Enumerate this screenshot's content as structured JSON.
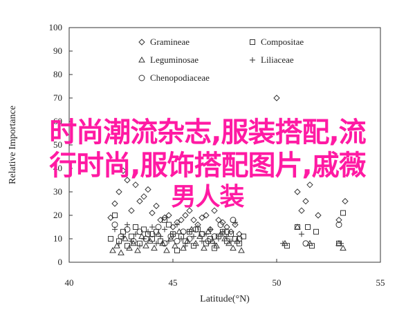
{
  "chart_data": {
    "type": "scatter",
    "xlabel": "Latitude(°N)",
    "ylabel": "Relative Importance",
    "xlim": [
      40,
      55
    ],
    "ylim": [
      0,
      100
    ],
    "xticks": [
      40,
      45,
      50,
      55
    ],
    "yticks": [
      0,
      10,
      20,
      30,
      40,
      50,
      60,
      70,
      80,
      90,
      100
    ],
    "legend": [
      {
        "name": "Gramineae",
        "marker": "diamond"
      },
      {
        "name": "Compositae",
        "marker": "square"
      },
      {
        "name": "Leguminosae",
        "marker": "triangle"
      },
      {
        "name": "Liliaceae",
        "marker": "plus"
      },
      {
        "name": "Chenopodiaceae",
        "marker": "circle"
      }
    ],
    "series": [
      {
        "name": "Gramineae",
        "marker": "diamond",
        "points": [
          [
            42.0,
            19
          ],
          [
            42.2,
            25
          ],
          [
            42.4,
            30
          ],
          [
            42.6,
            39
          ],
          [
            42.8,
            35
          ],
          [
            43.0,
            22
          ],
          [
            43.2,
            33
          ],
          [
            43.4,
            26
          ],
          [
            43.6,
            28
          ],
          [
            43.8,
            31
          ],
          [
            44.0,
            21
          ],
          [
            44.2,
            24
          ],
          [
            44.4,
            18
          ],
          [
            44.6,
            19
          ],
          [
            44.8,
            20
          ],
          [
            45.0,
            15
          ],
          [
            45.2,
            17
          ],
          [
            45.4,
            18
          ],
          [
            45.6,
            20
          ],
          [
            45.8,
            22
          ],
          [
            46.0,
            18
          ],
          [
            46.2,
            16
          ],
          [
            46.4,
            19
          ],
          [
            46.6,
            20
          ],
          [
            46.8,
            14
          ],
          [
            47.0,
            22
          ],
          [
            47.2,
            18
          ],
          [
            47.4,
            17
          ],
          [
            47.6,
            15
          ],
          [
            47.8,
            13
          ],
          [
            48.0,
            16
          ],
          [
            48.2,
            12
          ],
          [
            50.0,
            70
          ],
          [
            51.0,
            30
          ],
          [
            51.2,
            22
          ],
          [
            51.4,
            26
          ],
          [
            51.6,
            33
          ],
          [
            52.0,
            20
          ],
          [
            53.0,
            18
          ],
          [
            53.3,
            26
          ]
        ]
      },
      {
        "name": "Compositae",
        "marker": "square",
        "points": [
          [
            42.0,
            10
          ],
          [
            42.2,
            20
          ],
          [
            42.4,
            9
          ],
          [
            42.6,
            13
          ],
          [
            42.8,
            7
          ],
          [
            43.0,
            11
          ],
          [
            43.2,
            15
          ],
          [
            43.4,
            8
          ],
          [
            43.6,
            14
          ],
          [
            43.8,
            12
          ],
          [
            44.0,
            10
          ],
          [
            44.2,
            13
          ],
          [
            44.4,
            9
          ],
          [
            44.6,
            18
          ],
          [
            44.8,
            16
          ],
          [
            45.0,
            12
          ],
          [
            45.2,
            5
          ],
          [
            45.4,
            11
          ],
          [
            45.6,
            9
          ],
          [
            45.8,
            13
          ],
          [
            46.0,
            7
          ],
          [
            46.2,
            14
          ],
          [
            46.4,
            12
          ],
          [
            46.6,
            8
          ],
          [
            46.8,
            10
          ],
          [
            47.0,
            6
          ],
          [
            47.2,
            11
          ],
          [
            47.4,
            13
          ],
          [
            47.6,
            9
          ],
          [
            47.8,
            12
          ],
          [
            48.0,
            10
          ],
          [
            48.2,
            8
          ],
          [
            48.4,
            11
          ],
          [
            50.5,
            7
          ],
          [
            51.0,
            15
          ],
          [
            51.5,
            15
          ],
          [
            51.7,
            7
          ],
          [
            51.9,
            13
          ],
          [
            53.0,
            8
          ],
          [
            53.2,
            21
          ]
        ]
      },
      {
        "name": "Leguminosae",
        "marker": "triangle",
        "points": [
          [
            42.1,
            5
          ],
          [
            42.3,
            7
          ],
          [
            42.5,
            4
          ],
          [
            42.7,
            10
          ],
          [
            42.9,
            6
          ],
          [
            43.1,
            8
          ],
          [
            43.3,
            5
          ],
          [
            43.5,
            11
          ],
          [
            43.7,
            7
          ],
          [
            43.9,
            9
          ],
          [
            44.1,
            6
          ],
          [
            44.3,
            12
          ],
          [
            44.5,
            8
          ],
          [
            44.7,
            5
          ],
          [
            44.9,
            10
          ],
          [
            45.1,
            7
          ],
          [
            45.3,
            13
          ],
          [
            45.5,
            6
          ],
          [
            45.7,
            9
          ],
          [
            45.9,
            14
          ],
          [
            46.1,
            8
          ],
          [
            46.3,
            11
          ],
          [
            46.5,
            6
          ],
          [
            46.7,
            13
          ],
          [
            46.9,
            9
          ],
          [
            47.1,
            7
          ],
          [
            47.3,
            12
          ],
          [
            47.5,
            10
          ],
          [
            47.7,
            8
          ],
          [
            47.9,
            6
          ],
          [
            48.1,
            9
          ],
          [
            48.3,
            5
          ],
          [
            50.4,
            8
          ],
          [
            51.0,
            15
          ],
          [
            51.6,
            8
          ],
          [
            53.0,
            8
          ],
          [
            53.2,
            6
          ]
        ]
      },
      {
        "name": "Liliaceae",
        "marker": "plus",
        "points": [
          [
            42.2,
            14
          ],
          [
            42.4,
            8
          ],
          [
            42.6,
            11
          ],
          [
            42.8,
            16
          ],
          [
            43.0,
            9
          ],
          [
            43.2,
            12
          ],
          [
            43.4,
            7
          ],
          [
            43.6,
            10
          ],
          [
            43.8,
            13
          ],
          [
            44.0,
            15
          ],
          [
            44.2,
            8
          ],
          [
            44.4,
            11
          ],
          [
            44.6,
            14
          ],
          [
            44.8,
            9
          ],
          [
            45.0,
            12
          ],
          [
            45.2,
            16
          ],
          [
            45.4,
            10
          ],
          [
            45.6,
            7
          ],
          [
            45.8,
            13
          ],
          [
            46.0,
            11
          ],
          [
            46.2,
            15
          ],
          [
            46.4,
            9
          ],
          [
            46.6,
            12
          ],
          [
            46.8,
            14
          ],
          [
            47.0,
            8
          ],
          [
            47.2,
            10
          ],
          [
            47.4,
            13
          ],
          [
            47.6,
            11
          ],
          [
            47.8,
            9
          ],
          [
            48.0,
            17
          ],
          [
            50.3,
            8
          ],
          [
            51.2,
            12
          ],
          [
            53.1,
            8
          ]
        ]
      },
      {
        "name": "Chenopodiaceae",
        "marker": "circle",
        "points": [
          [
            42.2,
            16
          ],
          [
            42.5,
            11
          ],
          [
            42.8,
            14
          ],
          [
            43.1,
            9
          ],
          [
            43.4,
            13
          ],
          [
            43.7,
            10
          ],
          [
            44.0,
            12
          ],
          [
            44.3,
            15
          ],
          [
            44.6,
            8
          ],
          [
            44.9,
            11
          ],
          [
            45.2,
            9
          ],
          [
            45.5,
            13
          ],
          [
            45.8,
            10
          ],
          [
            46.1,
            14
          ],
          [
            46.4,
            12
          ],
          [
            46.7,
            9
          ],
          [
            47.0,
            11
          ],
          [
            47.3,
            16
          ],
          [
            47.6,
            13
          ],
          [
            47.9,
            18
          ],
          [
            48.2,
            10
          ],
          [
            51.4,
            8
          ],
          [
            53.0,
            16
          ]
        ]
      }
    ]
  },
  "overlay": {
    "line1": "时尚潮流杂志,服装搭配,流",
    "line2": "行时尚,服饰搭配图片,戚薇",
    "line3": "男人装"
  }
}
